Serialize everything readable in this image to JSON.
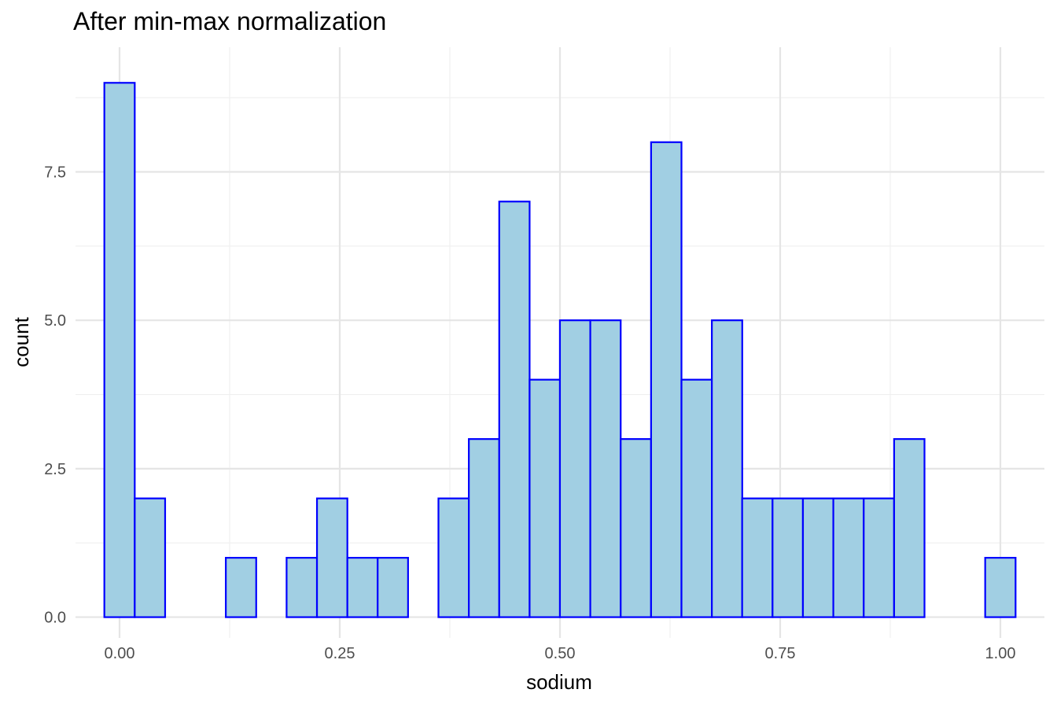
{
  "chart_data": {
    "type": "bar",
    "title": "After min-max normalization",
    "xlabel": "sodium",
    "ylabel": "count",
    "xlim": [
      -0.05,
      1.05
    ],
    "ylim": [
      -0.35,
      9.6
    ],
    "x_ticks": [
      0,
      0.25,
      0.5,
      0.75,
      1.0
    ],
    "x_tick_labels": [
      "0.00",
      "0.25",
      "0.50",
      "0.75",
      "1.00"
    ],
    "y_ticks": [
      0,
      2.5,
      5,
      7.5
    ],
    "y_tick_labels": [
      "0.0",
      "2.5",
      "5.0",
      "7.5"
    ],
    "grid": true,
    "bin_width": 0.0345,
    "bin_centers": [
      0,
      0.0345,
      0.069,
      0.1034,
      0.1379,
      0.1724,
      0.2069,
      0.2414,
      0.2759,
      0.3103,
      0.3448,
      0.3793,
      0.4138,
      0.4483,
      0.4828,
      0.5172,
      0.5517,
      0.5862,
      0.6207,
      0.6552,
      0.6897,
      0.7241,
      0.7586,
      0.7931,
      0.8276,
      0.8621,
      0.8966,
      0.931,
      0.9655,
      1.0
    ],
    "values": [
      9,
      2,
      0,
      0,
      1,
      0,
      1,
      2,
      1,
      1,
      0,
      2,
      3,
      7,
      4,
      5,
      5,
      3,
      8,
      4,
      5,
      2,
      2,
      2,
      2,
      2,
      3,
      0,
      0,
      1
    ],
    "colors": {
      "fill": "#a1cfe3",
      "stroke": "#0000ff"
    }
  }
}
